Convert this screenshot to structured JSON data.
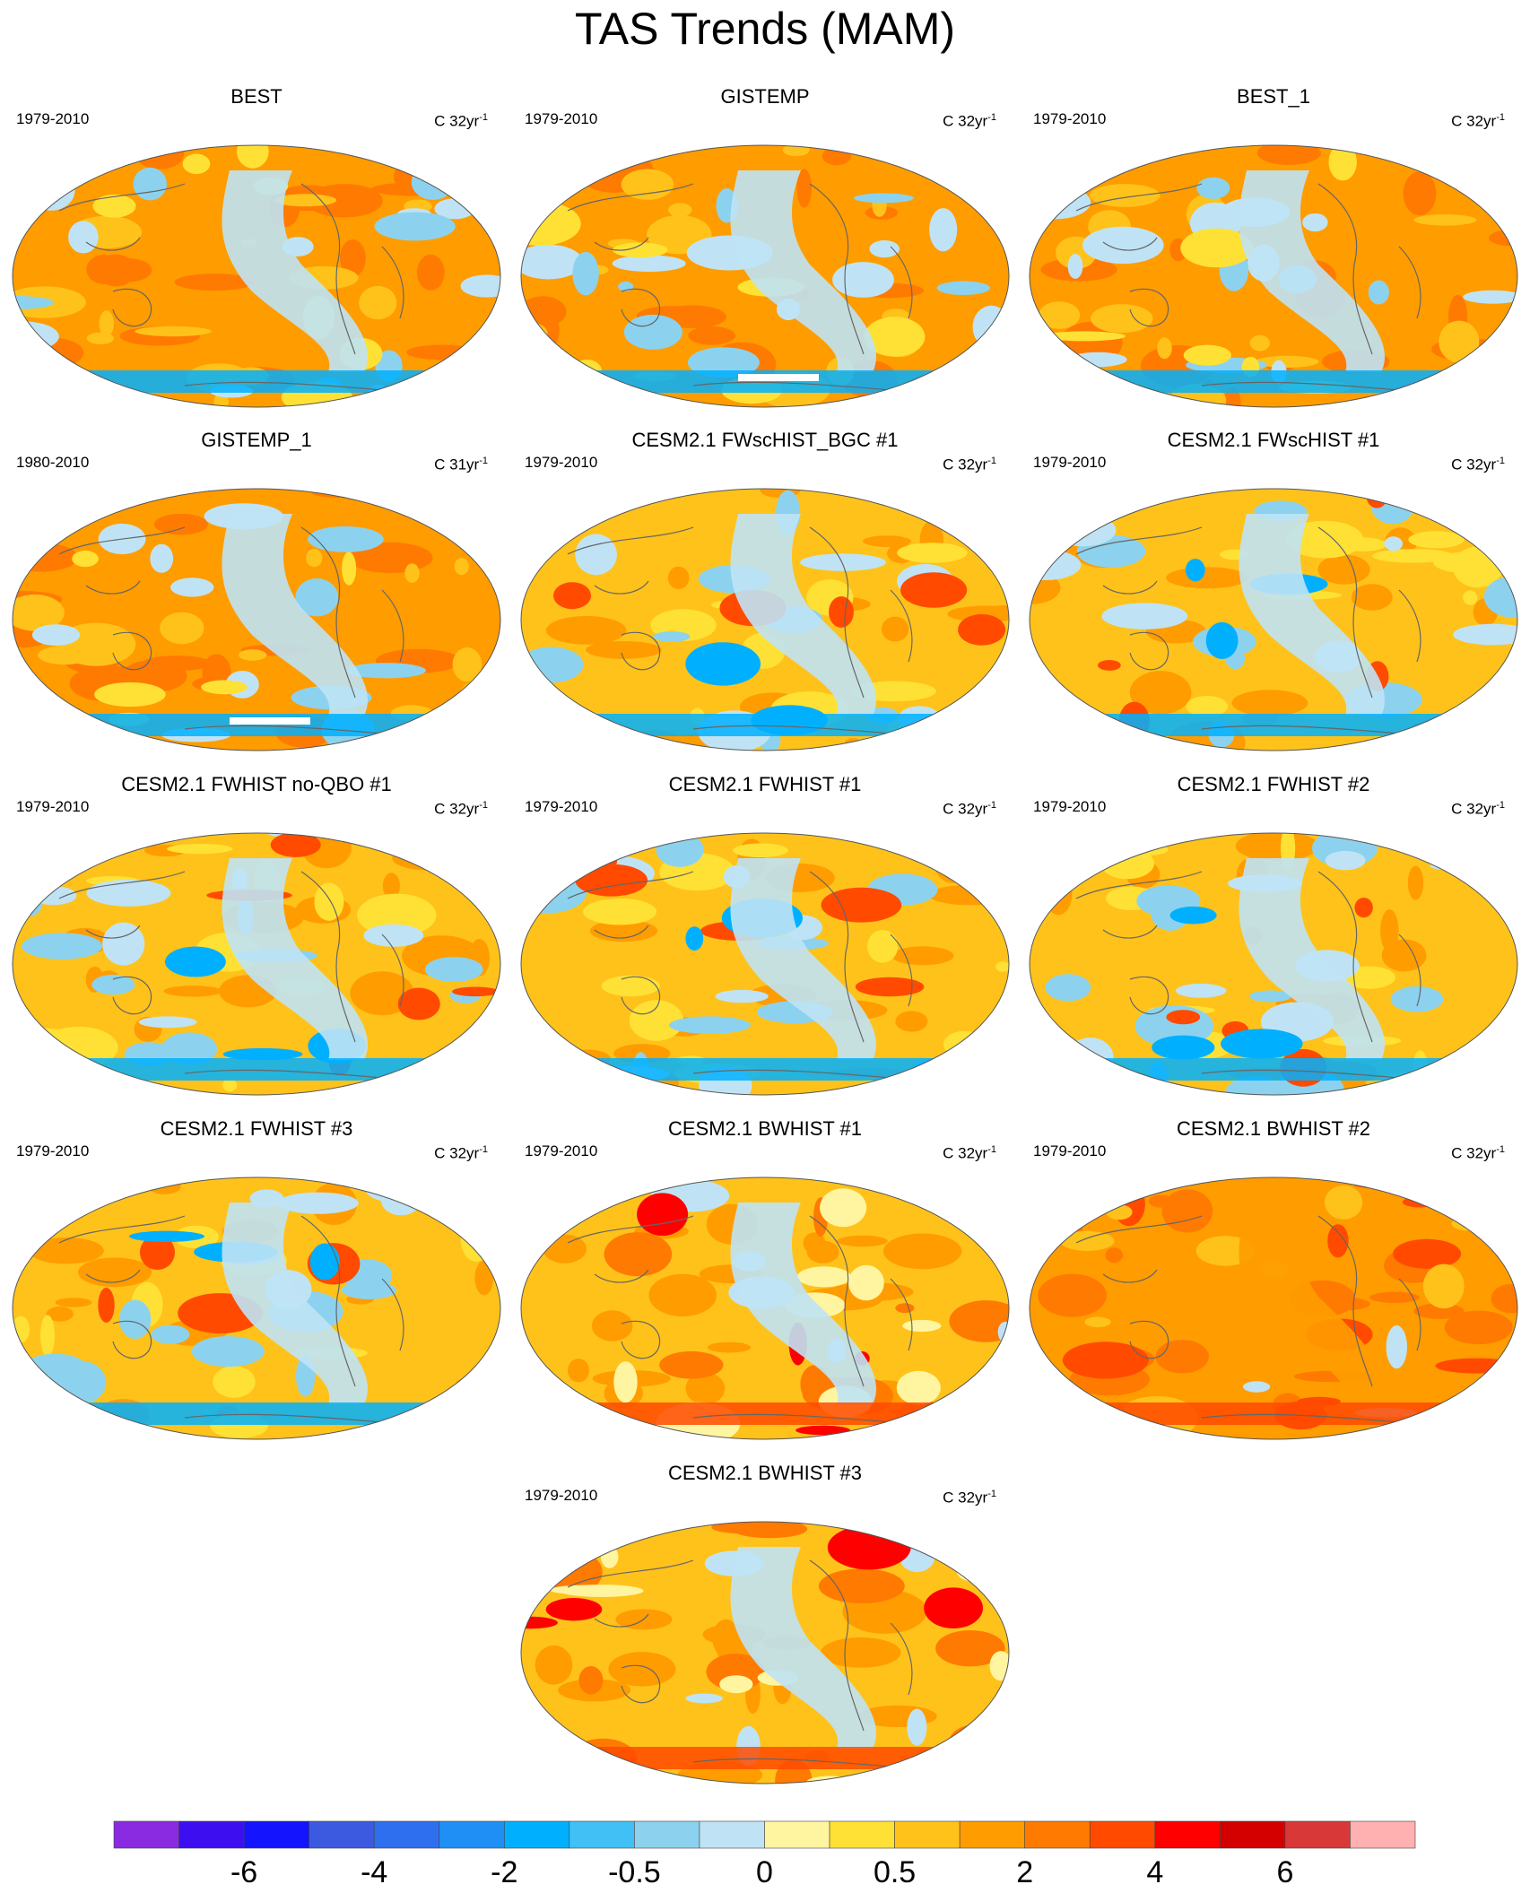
{
  "title": "TAS Trends (MAM)",
  "panels": [
    {
      "title": "BEST",
      "period": "1979-2010",
      "units_prefix": "C 32yr",
      "units_exp": "-1",
      "pattern": "obs"
    },
    {
      "title": "GISTEMP",
      "period": "1979-2010",
      "units_prefix": "C 32yr",
      "units_exp": "-1",
      "pattern": "obs-gap"
    },
    {
      "title": "BEST_1",
      "period": "1979-2010",
      "units_prefix": "C 32yr",
      "units_exp": "-1",
      "pattern": "obs"
    },
    {
      "title": "GISTEMP_1",
      "period": "1980-2010",
      "units_prefix": "C 31yr",
      "units_exp": "-1",
      "pattern": "obs-gap"
    },
    {
      "title": "CESM2.1 FWscHIST_BGC #1",
      "period": "1979-2010",
      "units_prefix": "C 32yr",
      "units_exp": "-1",
      "pattern": "model"
    },
    {
      "title": "CESM2.1 FWscHIST #1",
      "period": "1979-2010",
      "units_prefix": "C 32yr",
      "units_exp": "-1",
      "pattern": "model"
    },
    {
      "title": "CESM2.1 FWHIST no-QBO #1",
      "period": "1979-2010",
      "units_prefix": "C 32yr",
      "units_exp": "-1",
      "pattern": "model"
    },
    {
      "title": "CESM2.1 FWHIST #1",
      "period": "1979-2010",
      "units_prefix": "C 32yr",
      "units_exp": "-1",
      "pattern": "model"
    },
    {
      "title": "CESM2.1 FWHIST #2",
      "period": "1979-2010",
      "units_prefix": "C 32yr",
      "units_exp": "-1",
      "pattern": "model"
    },
    {
      "title": "CESM2.1 FWHIST #3",
      "period": "1979-2010",
      "units_prefix": "C 32yr",
      "units_exp": "-1",
      "pattern": "model"
    },
    {
      "title": "CESM2.1 BWHIST #1",
      "period": "1979-2010",
      "units_prefix": "C 32yr",
      "units_exp": "-1",
      "pattern": "warm"
    },
    {
      "title": "CESM2.1 BWHIST #2",
      "period": "1979-2010",
      "units_prefix": "C 32yr",
      "units_exp": "-1",
      "pattern": "hot"
    },
    {
      "title": "CESM2.1 BWHIST #3",
      "period": "1979-2010",
      "units_prefix": "C 32yr",
      "units_exp": "-1",
      "pattern": "warm"
    }
  ],
  "chart_data": {
    "type": "heatmap",
    "title": "TAS Trends (MAM)",
    "projection": "Robinson global map, Pacific-centred",
    "colorbar": {
      "colors": [
        "#8a2be2",
        "#3d0ff0",
        "#1414ff",
        "#3c5ae0",
        "#2e6ff0",
        "#1f8ff5",
        "#00b0ff",
        "#40c0f5",
        "#8cd2ee",
        "#bfe3f5",
        "#fff5a0",
        "#ffe135",
        "#ffc21a",
        "#ff9c00",
        "#ff7a00",
        "#ff4a00",
        "#ff0000",
        "#d40000",
        "#d83838",
        "#ffb0b0"
      ],
      "tick_labels": [
        "-6",
        "-4",
        "-2",
        "-0.5",
        "0",
        "0.5",
        "2",
        "4",
        "6"
      ],
      "tick_boundaries": [
        2,
        4,
        6,
        8,
        10,
        12,
        14,
        16,
        18
      ]
    }
  }
}
